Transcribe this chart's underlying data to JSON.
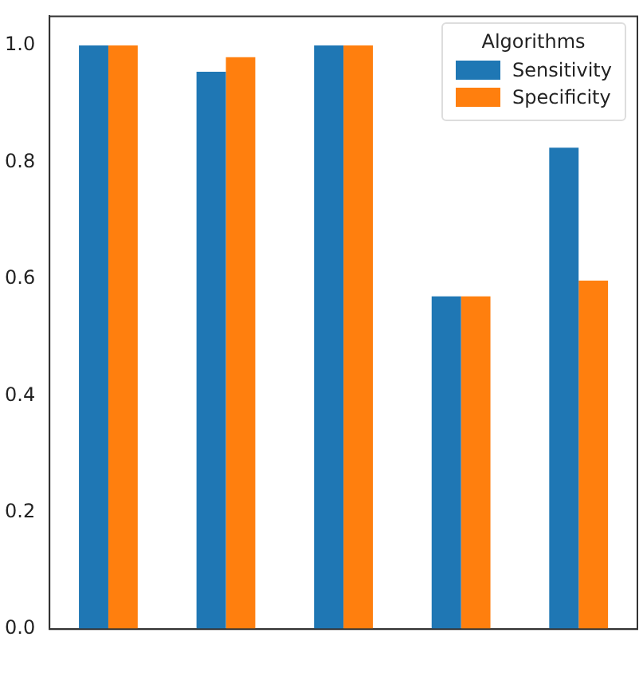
{
  "chart_data": {
    "type": "bar",
    "categories": [
      null,
      null,
      null,
      null,
      null
    ],
    "series": [
      {
        "name": "Sensitivity",
        "color": "#1f77b4",
        "values": [
          1.0,
          0.955,
          1.0,
          0.57,
          0.825
        ]
      },
      {
        "name": "Specificity",
        "color": "#ff7f0e",
        "values": [
          1.0,
          0.98,
          1.0,
          0.57,
          0.597
        ]
      }
    ],
    "legend_title": "Algorithms",
    "legend": "top right",
    "ylim": [
      0,
      1.05
    ],
    "yticks": [
      {
        "value": 0,
        "label": "0.0"
      },
      {
        "value": 0.2,
        "label": "0.2"
      },
      {
        "value": 0.4,
        "label": "0.4"
      },
      {
        "value": 0.6,
        "label": "0.6"
      },
      {
        "value": 0.8,
        "label": "0.8"
      },
      {
        "value": 1,
        "label": "1.0"
      }
    ],
    "grid": false
  }
}
